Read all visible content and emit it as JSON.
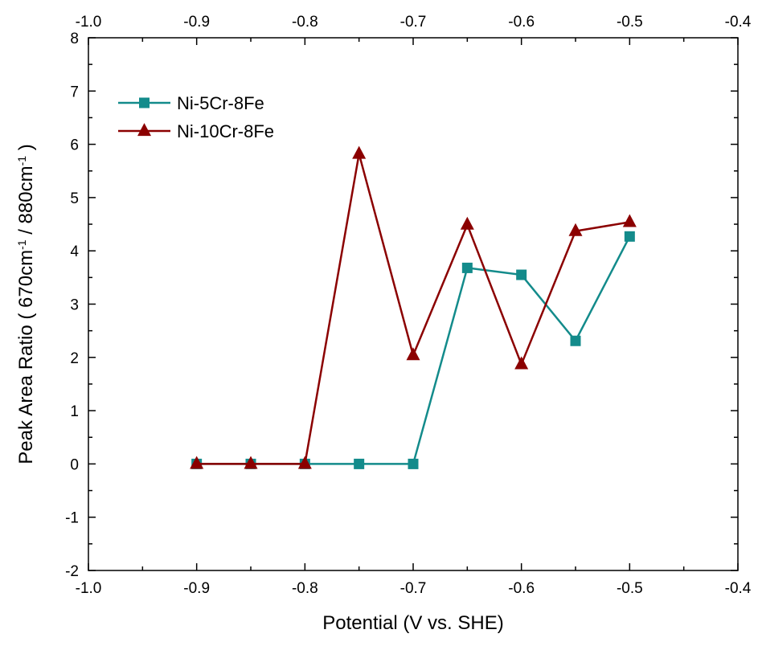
{
  "chart_data": {
    "type": "line",
    "xlabel": "Potential (V vs. SHE)",
    "ylabel": {
      "prefix": "Peak Area Ratio ( 670cm",
      "sup1": "-1",
      "middle": " / 880cm",
      "sup2": "-1",
      "suffix": " )"
    },
    "xlim": [
      -1.0,
      -0.4
    ],
    "ylim": [
      -2,
      8
    ],
    "x_ticks": [
      "-1.0",
      "-0.9",
      "-0.8",
      "-0.7",
      "-0.6",
      "-0.5",
      "-0.4"
    ],
    "x_tick_values": [
      -1.0,
      -0.9,
      -0.8,
      -0.7,
      -0.6,
      -0.5,
      -0.4
    ],
    "y_ticks": [
      "-2",
      "-1",
      "0",
      "1",
      "2",
      "3",
      "4",
      "5",
      "6",
      "7",
      "8"
    ],
    "y_tick_values": [
      -2,
      -1,
      0,
      1,
      2,
      3,
      4,
      5,
      6,
      7,
      8
    ],
    "top_axis_mirrors_bottom": true,
    "grid": false,
    "legend_position": "top-left",
    "x": [
      -0.9,
      -0.85,
      -0.8,
      -0.75,
      -0.7,
      -0.65,
      -0.6,
      -0.55,
      -0.5
    ],
    "series": [
      {
        "name": "Ni-5Cr-8Fe",
        "marker": "square",
        "color": "#138b8b",
        "values": [
          0,
          0,
          0,
          0,
          0,
          3.68,
          3.55,
          2.31,
          4.27
        ]
      },
      {
        "name": "Ni-10Cr-8Fe",
        "marker": "triangle",
        "color": "#8b0000",
        "values": [
          0,
          0,
          0,
          5.82,
          2.04,
          4.49,
          1.87,
          4.37,
          4.54
        ]
      }
    ]
  }
}
